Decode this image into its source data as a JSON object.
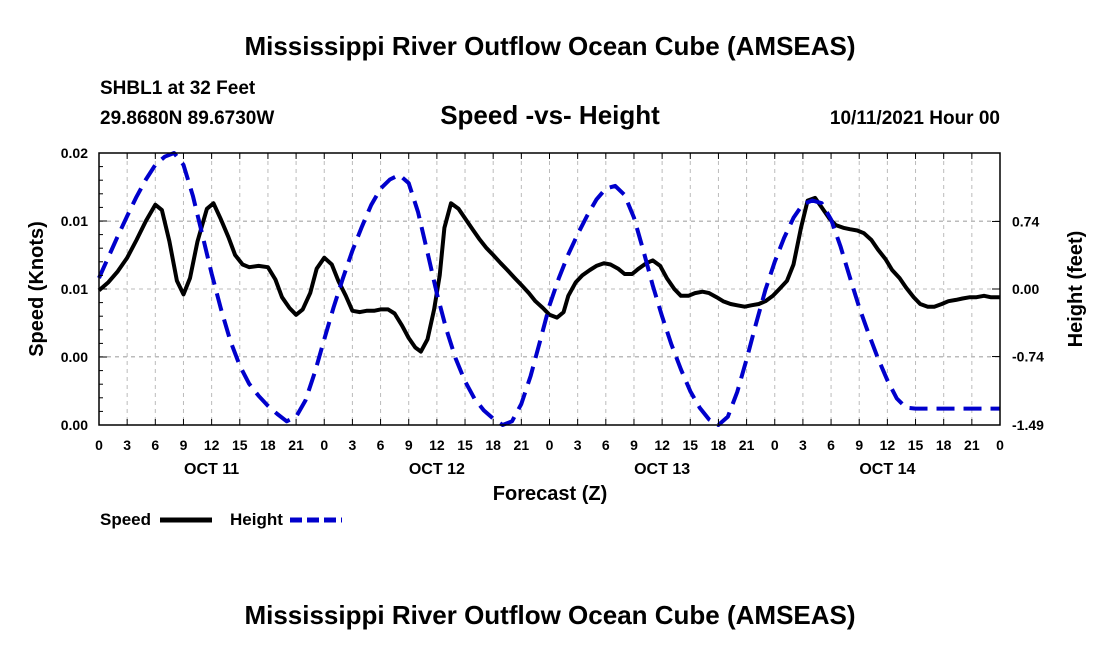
{
  "page": {
    "title_top": "Mississippi River Outflow Ocean Cube (AMSEAS)",
    "title_bottom": "Mississippi River Outflow Ocean Cube (AMSEAS)",
    "station": "SHBL1 at 32 Feet",
    "location": "29.8680N  89.6730W",
    "subtitle": "Speed -vs- Height",
    "datetime": "10/11/2021 Hour 00"
  },
  "chart_data": {
    "type": "line",
    "xlabel": "Forecast (Z)",
    "ylabel_left": "Speed (Knots)",
    "ylabel_right": "Height (feet)",
    "x_hours": [
      0,
      96
    ],
    "x_tick_hours": [
      0,
      3,
      6,
      9,
      12,
      15,
      18,
      21,
      24,
      27,
      30,
      33,
      36,
      39,
      42,
      45,
      48,
      51,
      54,
      57,
      60,
      63,
      66,
      69,
      72,
      75,
      78,
      81,
      84,
      87,
      90,
      93,
      96
    ],
    "x_tick_labels": [
      "0",
      "3",
      "6",
      "9",
      "12",
      "15",
      "18",
      "21",
      "0",
      "3",
      "6",
      "9",
      "12",
      "15",
      "18",
      "21",
      "0",
      "3",
      "6",
      "9",
      "12",
      "15",
      "18",
      "21",
      "0",
      "3",
      "6",
      "9",
      "12",
      "15",
      "18",
      "21",
      "0"
    ],
    "day_labels": [
      {
        "hour": 12,
        "text": "OCT 11"
      },
      {
        "hour": 36,
        "text": "OCT 12"
      },
      {
        "hour": 60,
        "text": "OCT 13"
      },
      {
        "hour": 84,
        "text": "OCT 14"
      }
    ],
    "ylim_left": [
      0,
      0.02
    ],
    "y_left_ticks": [
      0,
      0.005,
      0.01,
      0.015,
      0.02
    ],
    "y_left_tick_labels": [
      "0.00",
      "0.00",
      "0.01",
      "0.01",
      "0.02"
    ],
    "ylim_right": [
      -1.49,
      1.49
    ],
    "y_right_ticks": [
      -1.49,
      -0.74,
      0.0,
      0.74
    ],
    "y_right_tick_labels": [
      "-1.49",
      "-0.74",
      "0.00",
      "0.74"
    ],
    "grid": true,
    "series": [
      {
        "name": "Speed",
        "axis": "left",
        "color": "#000000",
        "style": "solid",
        "points": [
          [
            0,
            0.0099
          ],
          [
            1,
            0.0105
          ],
          [
            2,
            0.0113
          ],
          [
            3,
            0.0123
          ],
          [
            4,
            0.0136
          ],
          [
            5,
            0.015
          ],
          [
            6,
            0.0162
          ],
          [
            6.7,
            0.0158
          ],
          [
            7.5,
            0.0135
          ],
          [
            8.3,
            0.0106
          ],
          [
            9,
            0.0096
          ],
          [
            9.7,
            0.0108
          ],
          [
            10.5,
            0.0135
          ],
          [
            11.5,
            0.0159
          ],
          [
            12.2,
            0.0163
          ],
          [
            13,
            0.0151
          ],
          [
            13.8,
            0.0138
          ],
          [
            14.5,
            0.0125
          ],
          [
            15.3,
            0.0118
          ],
          [
            16,
            0.0116
          ],
          [
            17,
            0.0117
          ],
          [
            18,
            0.0116
          ],
          [
            18.8,
            0.0107
          ],
          [
            19.5,
            0.0094
          ],
          [
            20.3,
            0.0086
          ],
          [
            21,
            0.0081
          ],
          [
            21.7,
            0.0085
          ],
          [
            22.5,
            0.0097
          ],
          [
            23.2,
            0.0115
          ],
          [
            24,
            0.0123
          ],
          [
            24.8,
            0.0118
          ],
          [
            25.5,
            0.0106
          ],
          [
            26.3,
            0.0095
          ],
          [
            27,
            0.0084
          ],
          [
            27.8,
            0.0083
          ],
          [
            28.5,
            0.0084
          ],
          [
            29.3,
            0.0084
          ],
          [
            30,
            0.0085
          ],
          [
            30.8,
            0.0085
          ],
          [
            31.5,
            0.0082
          ],
          [
            32.3,
            0.0073
          ],
          [
            33,
            0.0064
          ],
          [
            33.7,
            0.0057
          ],
          [
            34.3,
            0.0054
          ],
          [
            35,
            0.0063
          ],
          [
            35.7,
            0.0085
          ],
          [
            36.3,
            0.011
          ],
          [
            36.8,
            0.0145
          ],
          [
            37.5,
            0.0163
          ],
          [
            38.3,
            0.0159
          ],
          [
            39,
            0.0152
          ],
          [
            39.8,
            0.0144
          ],
          [
            40.5,
            0.0137
          ],
          [
            41.3,
            0.013
          ],
          [
            42,
            0.0125
          ],
          [
            42.8,
            0.0119
          ],
          [
            43.5,
            0.0114
          ],
          [
            44.3,
            0.0108
          ],
          [
            45,
            0.0103
          ],
          [
            45.8,
            0.0097
          ],
          [
            46.5,
            0.0091
          ],
          [
            47.3,
            0.0086
          ],
          [
            48,
            0.0081
          ],
          [
            48.8,
            0.0079
          ],
          [
            49.5,
            0.0083
          ],
          [
            50,
            0.0095
          ],
          [
            50.8,
            0.0105
          ],
          [
            51.5,
            0.011
          ],
          [
            52.3,
            0.0114
          ],
          [
            53,
            0.0117
          ],
          [
            53.8,
            0.0119
          ],
          [
            54.5,
            0.0118
          ],
          [
            55.3,
            0.0115
          ],
          [
            56,
            0.0111
          ],
          [
            56.8,
            0.0111
          ],
          [
            57.5,
            0.0115
          ],
          [
            58.3,
            0.0119
          ],
          [
            59,
            0.0121
          ],
          [
            59.8,
            0.0117
          ],
          [
            60.5,
            0.0108
          ],
          [
            61.3,
            0.01
          ],
          [
            62,
            0.0095
          ],
          [
            62.8,
            0.0095
          ],
          [
            63.5,
            0.0097
          ],
          [
            64.3,
            0.0098
          ],
          [
            65,
            0.0097
          ],
          [
            65.8,
            0.0094
          ],
          [
            66.5,
            0.0091
          ],
          [
            67.3,
            0.0089
          ],
          [
            68,
            0.0088
          ],
          [
            68.8,
            0.0087
          ],
          [
            69.5,
            0.0088
          ],
          [
            70.3,
            0.0089
          ],
          [
            71,
            0.0091
          ],
          [
            71.8,
            0.0095
          ],
          [
            72.5,
            0.01
          ],
          [
            73.3,
            0.0106
          ],
          [
            74,
            0.0118
          ],
          [
            74.8,
            0.0145
          ],
          [
            75.5,
            0.0165
          ],
          [
            76.3,
            0.0167
          ],
          [
            77,
            0.016
          ],
          [
            77.8,
            0.0152
          ],
          [
            78.5,
            0.0147
          ],
          [
            79.3,
            0.0145
          ],
          [
            80,
            0.0144
          ],
          [
            80.8,
            0.0143
          ],
          [
            81.5,
            0.0141
          ],
          [
            82.3,
            0.0136
          ],
          [
            83,
            0.0129
          ],
          [
            83.8,
            0.0122
          ],
          [
            84.5,
            0.0114
          ],
          [
            85.3,
            0.0108
          ],
          [
            86,
            0.0101
          ],
          [
            86.8,
            0.0094
          ],
          [
            87.5,
            0.0089
          ],
          [
            88.3,
            0.0087
          ],
          [
            89,
            0.0087
          ],
          [
            89.8,
            0.0089
          ],
          [
            90.5,
            0.0091
          ],
          [
            91.3,
            0.0092
          ],
          [
            92,
            0.0093
          ],
          [
            92.8,
            0.0094
          ],
          [
            93.5,
            0.0094
          ],
          [
            94.3,
            0.0095
          ],
          [
            95,
            0.0094
          ],
          [
            96,
            0.0094
          ]
        ]
      },
      {
        "name": "Height",
        "axis": "right",
        "color": "#0000cc",
        "style": "dashed",
        "points": [
          [
            0,
            0.12
          ],
          [
            1,
            0.35
          ],
          [
            2,
            0.58
          ],
          [
            3,
            0.8
          ],
          [
            4,
            1.01
          ],
          [
            5,
            1.2
          ],
          [
            6,
            1.36
          ],
          [
            7,
            1.45
          ],
          [
            8,
            1.49
          ],
          [
            9,
            1.36
          ],
          [
            10,
            1.02
          ],
          [
            11,
            0.6
          ],
          [
            12,
            0.17
          ],
          [
            13,
            -0.22
          ],
          [
            14,
            -0.57
          ],
          [
            15,
            -0.84
          ],
          [
            16,
            -1.04
          ],
          [
            17,
            -1.17
          ],
          [
            18,
            -1.28
          ],
          [
            19,
            -1.37
          ],
          [
            20,
            -1.45
          ],
          [
            21,
            -1.4
          ],
          [
            22,
            -1.22
          ],
          [
            23,
            -0.91
          ],
          [
            24,
            -0.55
          ],
          [
            25,
            -0.2
          ],
          [
            26,
            0.12
          ],
          [
            27,
            0.42
          ],
          [
            28,
            0.68
          ],
          [
            29,
            0.92
          ],
          [
            30,
            1.1
          ],
          [
            31,
            1.2
          ],
          [
            32,
            1.25
          ],
          [
            33,
            1.16
          ],
          [
            34,
            0.84
          ],
          [
            35,
            0.4
          ],
          [
            36,
            -0.05
          ],
          [
            37,
            -0.44
          ],
          [
            38,
            -0.76
          ],
          [
            39,
            -1.01
          ],
          [
            40,
            -1.2
          ],
          [
            41,
            -1.33
          ],
          [
            42,
            -1.42
          ],
          [
            43,
            -1.49
          ],
          [
            44,
            -1.45
          ],
          [
            45,
            -1.26
          ],
          [
            46,
            -0.95
          ],
          [
            47,
            -0.57
          ],
          [
            48,
            -0.18
          ],
          [
            49,
            0.12
          ],
          [
            50,
            0.38
          ],
          [
            51,
            0.6
          ],
          [
            52,
            0.8
          ],
          [
            53,
            0.98
          ],
          [
            54,
            1.1
          ],
          [
            55,
            1.13
          ],
          [
            56,
            1.03
          ],
          [
            57,
            0.78
          ],
          [
            58,
            0.42
          ],
          [
            59,
            0.04
          ],
          [
            60,
            -0.3
          ],
          [
            61,
            -0.61
          ],
          [
            62,
            -0.88
          ],
          [
            63,
            -1.12
          ],
          [
            64,
            -1.3
          ],
          [
            65,
            -1.43
          ],
          [
            66,
            -1.49
          ],
          [
            67,
            -1.4
          ],
          [
            68,
            -1.13
          ],
          [
            69,
            -0.77
          ],
          [
            70,
            -0.38
          ],
          [
            71,
            -0.01
          ],
          [
            72,
            0.3
          ],
          [
            73,
            0.56
          ],
          [
            74,
            0.78
          ],
          [
            75,
            0.93
          ],
          [
            76,
            0.97
          ],
          [
            77,
            0.94
          ],
          [
            78,
            0.76
          ],
          [
            79,
            0.47
          ],
          [
            80,
            0.13
          ],
          [
            81,
            -0.2
          ],
          [
            82,
            -0.49
          ],
          [
            83,
            -0.76
          ],
          [
            84,
            -1.0
          ],
          [
            85,
            -1.2
          ],
          [
            86,
            -1.3
          ],
          [
            87,
            -1.31
          ],
          [
            96,
            -1.31
          ]
        ]
      }
    ]
  }
}
